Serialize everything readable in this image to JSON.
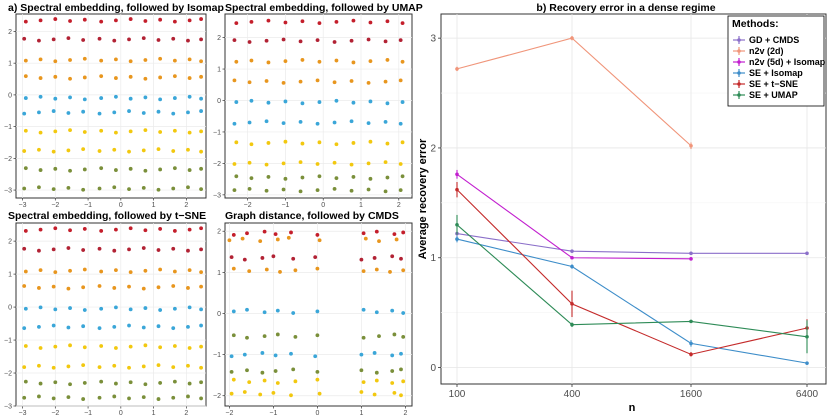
{
  "chart_data": [
    {
      "type": "scatter",
      "title": "a) Spectral embedding, followed by Isomap",
      "xticks": [
        -3,
        -2,
        -1,
        0,
        1,
        2
      ],
      "yticks": [
        -3,
        -2,
        -1,
        0,
        1,
        2
      ],
      "xlim": [
        -3.2,
        2.6
      ],
      "ylim": [
        -3.25,
        2.55
      ],
      "grid": true,
      "rows": [
        {
          "color": "#c41e2b",
          "y": 2.35,
          "xs": [
            -2.9,
            -2.45,
            -2.0,
            -1.55,
            -1.1,
            -0.6,
            -0.15,
            0.3,
            0.75,
            1.2,
            1.65,
            2.1,
            2.45
          ]
        },
        {
          "color": "#b22234",
          "y": 1.75,
          "xs": [
            -2.95,
            -2.5,
            -2.05,
            -1.6,
            -1.15,
            -0.65,
            -0.2,
            0.25,
            0.7,
            1.15,
            1.6,
            2.05,
            2.45
          ]
        },
        {
          "color": "#e8961e",
          "y": 1.1,
          "xs": [
            -2.9,
            -2.45,
            -2.0,
            -1.55,
            -1.1,
            -0.6,
            -0.15,
            0.3,
            0.75,
            1.2,
            1.65,
            2.1,
            2.45
          ]
        },
        {
          "color": "#e8961e",
          "y": 0.55,
          "xs": [
            -2.9,
            -2.45,
            -2.0,
            -1.55,
            -1.1,
            -0.6,
            -0.15,
            0.3,
            0.75,
            1.2,
            1.65,
            2.1,
            2.45
          ]
        },
        {
          "color": "#3aa6d8",
          "y": -0.1,
          "xs": [
            -2.9,
            -2.45,
            -2.0,
            -1.55,
            -1.1,
            -0.6,
            -0.15,
            0.3,
            0.75,
            1.2,
            1.65,
            2.1,
            2.45
          ]
        },
        {
          "color": "#3aa6d8",
          "y": -0.55,
          "xs": [
            -2.95,
            -2.5,
            -2.05,
            -1.6,
            -1.15,
            -0.65,
            -0.2,
            0.25,
            0.7,
            1.15,
            1.6,
            2.05,
            2.45
          ]
        },
        {
          "color": "#f2c80f",
          "y": -1.15,
          "xs": [
            -2.9,
            -2.45,
            -2.0,
            -1.55,
            -1.1,
            -0.6,
            -0.15,
            0.3,
            0.75,
            1.2,
            1.65,
            2.1,
            2.45
          ]
        },
        {
          "color": "#f2c80f",
          "y": -1.75,
          "xs": [
            -2.95,
            -2.5,
            -2.05,
            -1.6,
            -1.15,
            -0.65,
            -0.2,
            0.25,
            0.7,
            1.15,
            1.6,
            2.05,
            2.45
          ]
        },
        {
          "color": "#7a8f3a",
          "y": -2.35,
          "xs": [
            -2.9,
            -2.45,
            -2.0,
            -1.55,
            -1.1,
            -0.6,
            -0.15,
            0.3,
            0.75,
            1.2,
            1.65,
            2.1,
            2.45
          ]
        },
        {
          "color": "#7a8f3a",
          "y": -2.95,
          "xs": [
            -2.95,
            -2.5,
            -2.05,
            -1.6,
            -1.15,
            -0.65,
            -0.2,
            0.25,
            0.7,
            1.15,
            1.6,
            2.05,
            2.45
          ]
        }
      ]
    },
    {
      "type": "scatter",
      "title": "Spectral embedding, followed by UMAP",
      "xticks": [
        -2,
        -1,
        0,
        1,
        2
      ],
      "yticks": [
        -3,
        -2,
        -1,
        0,
        1,
        2
      ],
      "xlim": [
        -2.6,
        2.35
      ],
      "ylim": [
        -3.1,
        2.75
      ],
      "grid": true,
      "rows": [
        {
          "color": "#c41e2b",
          "y": 2.5,
          "xs": [
            -2.3,
            -1.9,
            -1.45,
            -1.0,
            -0.55,
            -0.1,
            0.35,
            0.8,
            1.25,
            1.7,
            2.1
          ]
        },
        {
          "color": "#b22234",
          "y": 1.9,
          "xs": [
            -2.35,
            -1.95,
            -1.5,
            -1.05,
            -0.6,
            -0.15,
            0.3,
            0.75,
            1.2,
            1.65,
            2.05
          ]
        },
        {
          "color": "#e8961e",
          "y": 1.25,
          "xs": [
            -2.3,
            -1.9,
            -1.45,
            -1.0,
            -0.55,
            -0.1,
            0.35,
            0.8,
            1.25,
            1.7,
            2.1
          ]
        },
        {
          "color": "#e8961e",
          "y": 0.6,
          "xs": [
            -2.35,
            -1.95,
            -1.5,
            -1.05,
            -0.6,
            -0.15,
            0.3,
            0.75,
            1.2,
            1.65,
            2.05
          ]
        },
        {
          "color": "#3aa6d8",
          "y": -0.05,
          "xs": [
            -2.3,
            -1.9,
            -1.45,
            -1.0,
            -0.55,
            -0.1,
            0.35,
            0.8,
            1.25,
            1.7,
            2.1
          ]
        },
        {
          "color": "#3aa6d8",
          "y": -0.7,
          "xs": [
            -2.35,
            -1.95,
            -1.5,
            -1.05,
            -0.6,
            -0.15,
            0.3,
            0.75,
            1.2,
            1.65,
            2.05
          ]
        },
        {
          "color": "#f2c80f",
          "y": -1.35,
          "xs": [
            -2.3,
            -1.9,
            -1.45,
            -1.0,
            -0.55,
            -0.1,
            0.35,
            0.8,
            1.25,
            1.7,
            2.1
          ]
        },
        {
          "color": "#f2c80f",
          "y": -2.0,
          "xs": [
            -2.35,
            -1.95,
            -1.5,
            -1.05,
            -0.6,
            -0.15,
            0.3,
            0.75,
            1.2,
            1.65,
            2.05
          ]
        },
        {
          "color": "#7a8f3a",
          "y": -2.45,
          "xs": [
            -2.3,
            -1.9,
            -1.45,
            -1.0,
            -0.55,
            -0.1,
            0.35,
            0.8,
            1.25,
            1.7,
            2.1
          ]
        },
        {
          "color": "#7a8f3a",
          "y": -2.85,
          "xs": [
            -2.35,
            -1.95,
            -1.5,
            -1.05,
            -0.6,
            -0.15,
            0.3,
            0.75,
            1.2,
            1.65,
            2.05
          ]
        }
      ]
    },
    {
      "type": "scatter",
      "title": "Spectral embedding, followed by t−SNE",
      "xticks": [
        -3,
        -2,
        -1,
        0,
        1,
        2
      ],
      "yticks": [
        -3,
        -2,
        -1,
        0,
        1,
        2
      ],
      "xlim": [
        -3.2,
        2.6
      ],
      "ylim": [
        -3.0,
        2.55
      ],
      "grid": true,
      "rows": [
        {
          "color": "#c41e2b",
          "y": 2.35,
          "xs": [
            -2.9,
            -2.45,
            -2.0,
            -1.55,
            -1.1,
            -0.6,
            -0.15,
            0.3,
            0.75,
            1.2,
            1.65,
            2.1,
            2.45
          ]
        },
        {
          "color": "#b22234",
          "y": 1.75,
          "xs": [
            -2.95,
            -2.5,
            -2.05,
            -1.6,
            -1.15,
            -0.65,
            -0.2,
            0.25,
            0.7,
            1.15,
            1.6,
            2.05,
            2.45
          ]
        },
        {
          "color": "#e8961e",
          "y": 1.1,
          "xs": [
            -2.9,
            -2.45,
            -2.0,
            -1.55,
            -1.1,
            -0.6,
            -0.15,
            0.3,
            0.75,
            1.2,
            1.65,
            2.1,
            2.45
          ]
        },
        {
          "color": "#e8961e",
          "y": 0.6,
          "xs": [
            -2.95,
            -2.5,
            -2.05,
            -1.6,
            -1.15,
            -0.65,
            -0.2,
            0.25,
            0.7,
            1.15,
            1.6,
            2.05,
            2.45
          ]
        },
        {
          "color": "#3aa6d8",
          "y": -0.05,
          "xs": [
            -2.9,
            -2.45,
            -2.0,
            -1.55,
            -1.1,
            -0.6,
            -0.15,
            0.3,
            0.75,
            1.2,
            1.65,
            2.1,
            2.45
          ]
        },
        {
          "color": "#3aa6d8",
          "y": -0.6,
          "xs": [
            -2.95,
            -2.5,
            -2.05,
            -1.6,
            -1.15,
            -0.65,
            -0.2,
            0.25,
            0.7,
            1.15,
            1.6,
            2.05,
            2.45
          ]
        },
        {
          "color": "#f2c80f",
          "y": -1.2,
          "xs": [
            -2.9,
            -2.45,
            -2.0,
            -1.55,
            -1.1,
            -0.6,
            -0.15,
            0.3,
            0.75,
            1.2,
            1.65,
            2.1,
            2.45
          ]
        },
        {
          "color": "#f2c80f",
          "y": -1.8,
          "xs": [
            -2.95,
            -2.5,
            -2.05,
            -1.6,
            -1.15,
            -0.65,
            -0.2,
            0.25,
            0.7,
            1.15,
            1.6,
            2.05,
            2.45
          ]
        },
        {
          "color": "#7a8f3a",
          "y": -2.3,
          "xs": [
            -2.9,
            -2.45,
            -2.0,
            -1.55,
            -1.1,
            -0.6,
            -0.15,
            0.3,
            0.75,
            1.2,
            1.65,
            2.1,
            2.45
          ]
        },
        {
          "color": "#7a8f3a",
          "y": -2.75,
          "xs": [
            -2.95,
            -2.5,
            -2.05,
            -1.6,
            -1.15,
            -0.65,
            -0.2,
            0.25,
            0.7,
            1.15,
            1.6,
            2.05,
            2.45
          ]
        }
      ]
    },
    {
      "type": "scatter",
      "title": "Graph distance, followed by CMDS",
      "xticks": [
        -2,
        -1,
        0,
        1,
        2
      ],
      "yticks": [
        -2,
        -1,
        0,
        1,
        2
      ],
      "xlim": [
        -2.1,
        2.15
      ],
      "ylim": [
        -2.25,
        2.2
      ],
      "grid": true,
      "rows": [
        {
          "color": "#c41e2b",
          "y": 1.95,
          "xs": [
            -1.9,
            -1.6,
            -1.2,
            -0.95,
            -0.6,
            0.0,
            1.05,
            1.35,
            1.75,
            1.95
          ]
        },
        {
          "color": "#b22234",
          "y": 1.35,
          "xs": [
            -1.95,
            -1.65,
            -1.25,
            -1.0,
            -0.55,
            -0.05,
            1.0,
            1.3,
            1.7,
            1.9
          ]
        },
        {
          "color": "#e8961e",
          "y": 1.8,
          "xs": [
            -2.0,
            -1.7,
            -1.3,
            -0.9,
            -0.65,
            0.05,
            1.1,
            1.4,
            1.8
          ]
        },
        {
          "color": "#e8961e",
          "y": 1.05,
          "xs": [
            -1.9,
            -1.55,
            -1.15,
            -0.85,
            -0.5,
            0.0,
            1.05,
            1.35,
            1.65,
            1.95
          ]
        },
        {
          "color": "#3aa6d8",
          "y": 0.05,
          "xs": [
            -1.9,
            -1.6,
            -1.2,
            -0.9,
            -0.55,
            0.0,
            1.05,
            1.35,
            1.7,
            1.95
          ]
        },
        {
          "color": "#3aa6d8",
          "y": -1.0,
          "xs": [
            -1.95,
            -1.65,
            -1.25,
            -0.95,
            -0.6,
            -0.05,
            1.0,
            1.3,
            1.7,
            1.9
          ]
        },
        {
          "color": "#7a8f3a",
          "y": -0.55,
          "xs": [
            -1.9,
            -1.6,
            -1.2,
            -0.9,
            -0.5,
            0.0,
            1.05,
            1.4,
            1.75,
            1.95
          ]
        },
        {
          "color": "#7a8f3a",
          "y": -1.4,
          "xs": [
            -1.95,
            -1.6,
            -1.25,
            -0.95,
            -0.55,
            0.0,
            1.0,
            1.35,
            1.7,
            1.9
          ]
        },
        {
          "color": "#f2c80f",
          "y": -1.65,
          "xs": [
            -1.9,
            -1.55,
            -1.2,
            -0.9,
            -0.5,
            0.0,
            1.05,
            1.35,
            1.7,
            1.95
          ]
        },
        {
          "color": "#f2c80f",
          "y": -1.95,
          "xs": [
            -1.95,
            -1.65,
            -1.3,
            -1.0,
            -0.6,
            0.05,
            1.0,
            1.3,
            1.75,
            1.9
          ]
        }
      ]
    },
    {
      "type": "line",
      "title": "b) Recovery error in a dense regime",
      "xlabel": "n",
      "ylabel": "Average recovery error",
      "categories": [
        "100",
        "400",
        "1600",
        "6400"
      ],
      "ylim": [
        -0.15,
        3.22
      ],
      "yticks": [
        0,
        1,
        2,
        3
      ],
      "legend_title": "Methods:",
      "legend_position": "top-right",
      "series": [
        {
          "name": "GD + CMDS",
          "color": "#8b6fc9",
          "values": [
            1.22,
            1.06,
            1.04,
            1.04
          ],
          "err": [
            0.02,
            0.01,
            0.01,
            0.01
          ]
        },
        {
          "name": "n2v (2d)",
          "color": "#f0957a",
          "values": [
            2.72,
            3.0,
            2.02,
            null
          ],
          "err": [
            0.02,
            0.02,
            0.03,
            0
          ]
        },
        {
          "name": "n2v (5d) + Isomap",
          "color": "#c21fcf",
          "values": [
            1.76,
            1.0,
            0.99,
            null
          ],
          "err": [
            0.04,
            0.01,
            0.01,
            0
          ]
        },
        {
          "name": "SE + Isomap",
          "color": "#3d8dc9",
          "values": [
            1.17,
            0.92,
            0.22,
            0.04
          ],
          "err": [
            0.03,
            0.02,
            0.03,
            0.01
          ]
        },
        {
          "name": "SE + t−SNE",
          "color": "#c42b2b",
          "values": [
            1.62,
            0.58,
            0.12,
            0.36
          ],
          "err": [
            0.07,
            0.12,
            0.02,
            0.08
          ]
        },
        {
          "name": "SE + UMAP",
          "color": "#2e8b57",
          "values": [
            1.3,
            0.39,
            0.42,
            0.28
          ],
          "err": [
            0.09,
            0.02,
            0.01,
            0.15
          ]
        }
      ]
    }
  ]
}
